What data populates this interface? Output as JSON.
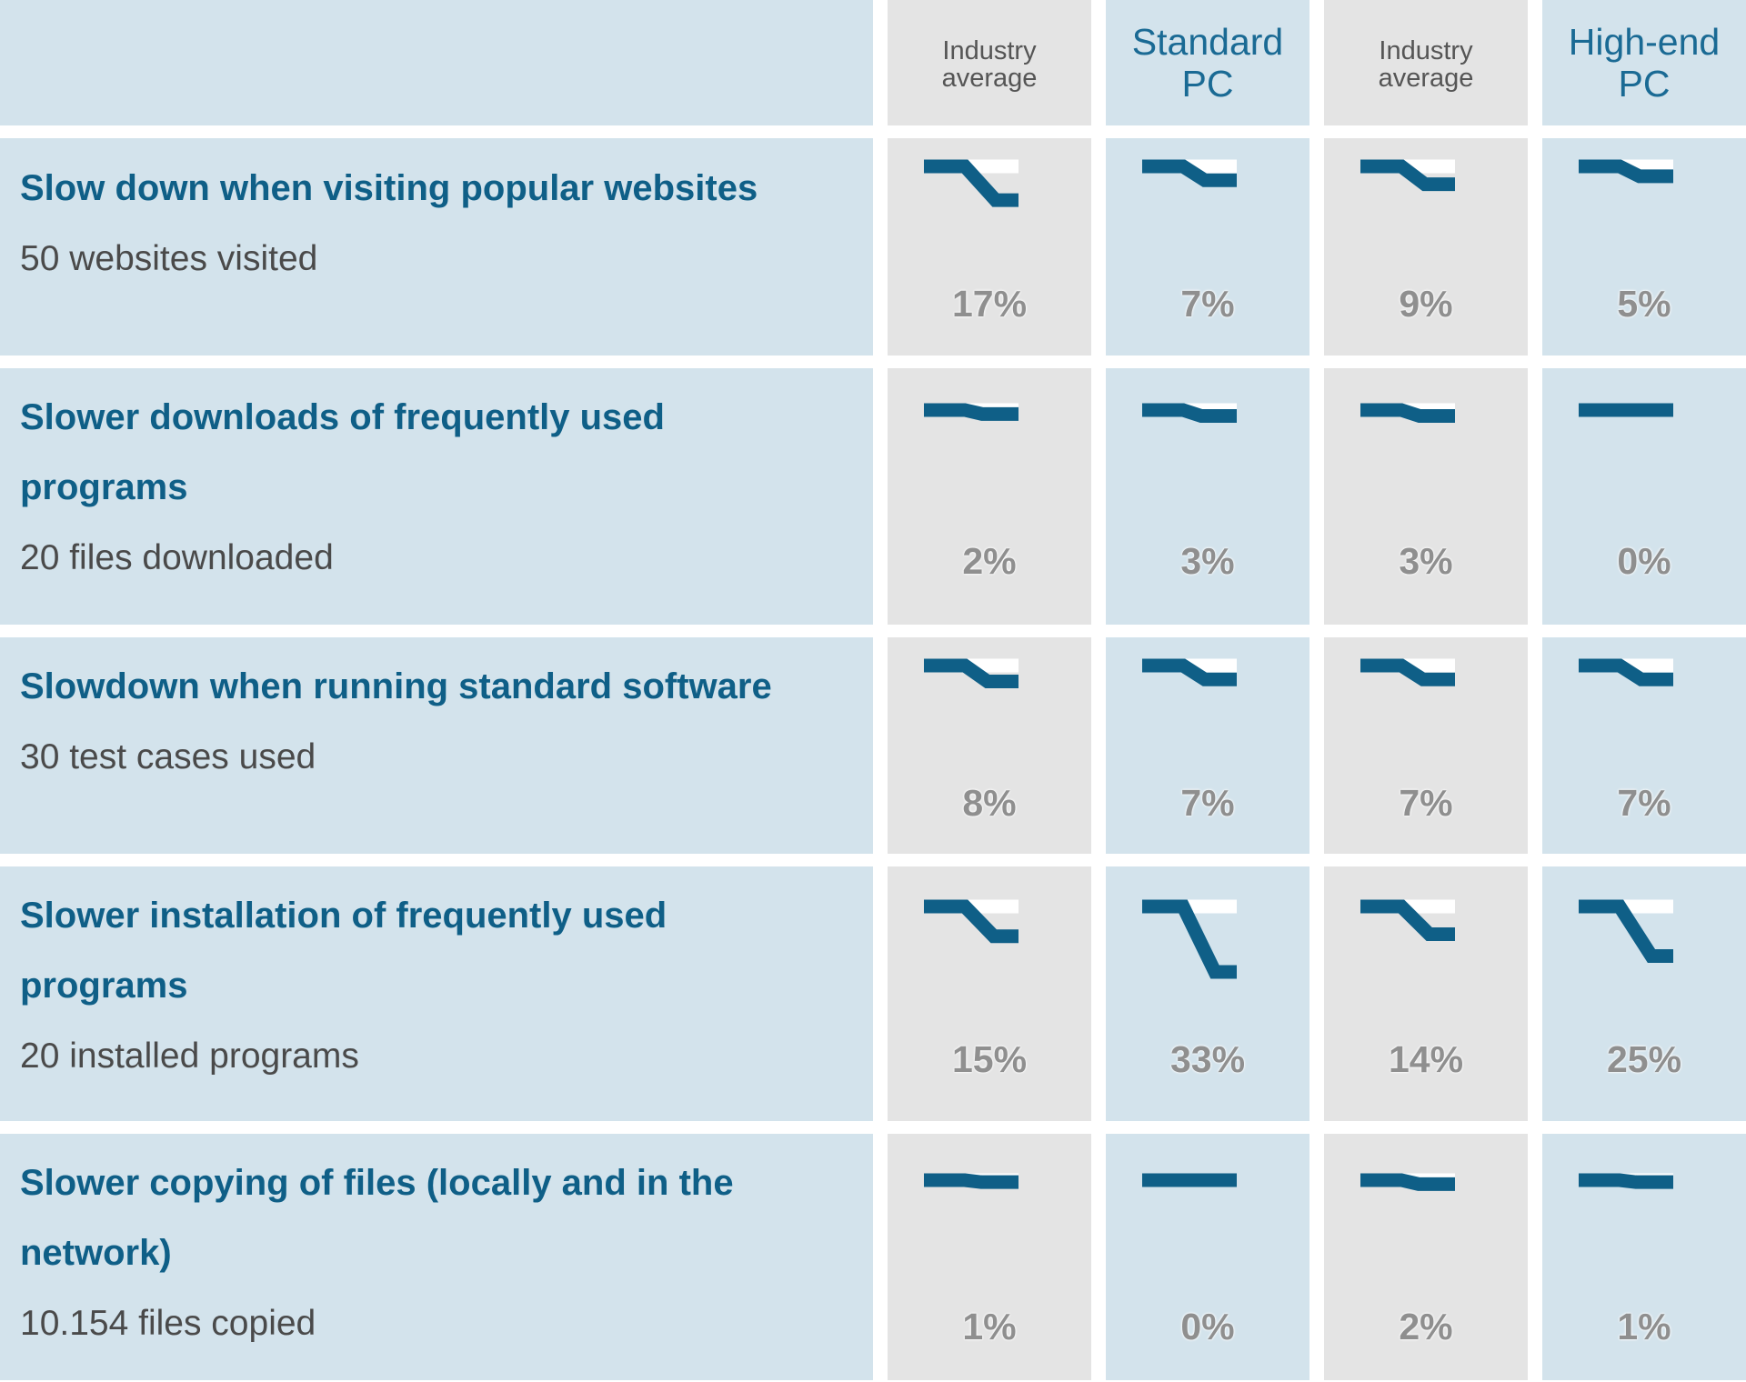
{
  "chart_data": {
    "type": "table",
    "columns": [
      {
        "label": "Industry\naverage",
        "style": "small",
        "tone": "grey"
      },
      {
        "label": "Standard\nPC",
        "style": "big",
        "tone": "blue"
      },
      {
        "label": "Industry\naverage",
        "style": "small",
        "tone": "grey"
      },
      {
        "label": "High-end\nPC",
        "style": "big",
        "tone": "blue"
      }
    ],
    "rows": [
      {
        "title": "Slow down when visiting popular websites",
        "subtitle": "50 websites visited",
        "values": [
          17,
          7,
          9,
          5
        ]
      },
      {
        "title": "Slower downloads of frequently used programs",
        "subtitle": "20 files downloaded",
        "values": [
          2,
          3,
          3,
          0
        ]
      },
      {
        "title": "Slowdown when running standard software",
        "subtitle": "30 test cases used",
        "values": [
          8,
          7,
          7,
          7
        ]
      },
      {
        "title": "Slower installation of frequently used programs",
        "subtitle": "20 installed programs",
        "values": [
          15,
          33,
          14,
          25
        ]
      },
      {
        "title": "Slower copying of files (locally and in the network)",
        "subtitle": "10.154 files copied",
        "values": [
          1,
          0,
          2,
          1
        ]
      }
    ],
    "unit": "%"
  },
  "colors": {
    "line": "#0f5f87",
    "baseline": "#ffffff",
    "blue_bg": "#d3e3ec",
    "grey_bg": "#e4e4e4",
    "title": "#0f5f87",
    "percent": "#8f8f8f"
  }
}
